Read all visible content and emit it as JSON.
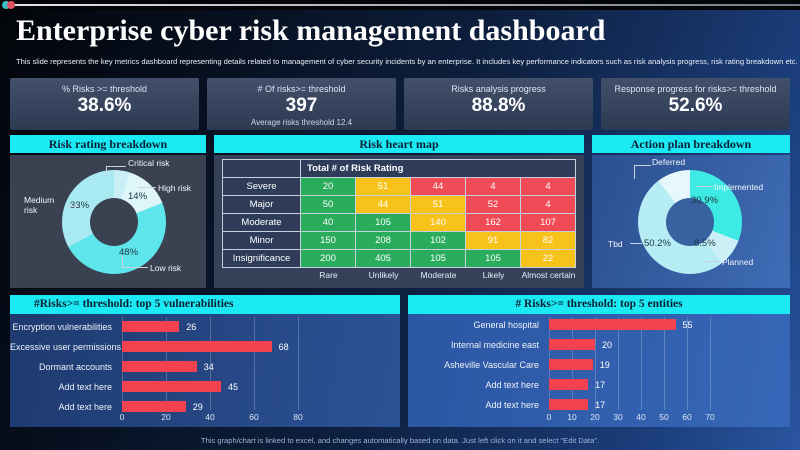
{
  "slide": {
    "title": "Enterprise cyber risk management dashboard",
    "subtitle": "This slide represents the key metrics dashboard representing details related to management  of cyber security incidents by an enterprise. It includes key performance indicators such as risk analysis progress, risk rating breakdown etc.",
    "footer": "This graph/chart is linked to excel, and changes automatically based on data. Just left click on it and select \"Edit Data\"."
  },
  "kpis": [
    {
      "label": "% Risks >= threshold",
      "value": "38.6%",
      "subtext": ""
    },
    {
      "label": "# Of risks>= threshold",
      "value": "397",
      "subtext": "Average risks threshold 12.4"
    },
    {
      "label": "Risks analysis progress",
      "value": "88.8%",
      "subtext": ""
    },
    {
      "label": "Response progress for risks>= threshold",
      "value": "52.6%",
      "subtext": ""
    }
  ],
  "chart_data": [
    {
      "id": "risk_rating_breakdown",
      "type": "pie",
      "donut": true,
      "title": "Risk rating breakdown",
      "legend_position": "callouts",
      "segments": [
        {
          "label": "Critical risk",
          "value": 5,
          "color": "#c9eff6",
          "pct_label": ""
        },
        {
          "label": "High risk",
          "value": 14,
          "color": "#def5fa",
          "pct_label": "14%"
        },
        {
          "label": "Low risk",
          "value": 48,
          "color": "#5fe5ec",
          "pct_label": "48%"
        },
        {
          "label": "Medium risk",
          "value": 33,
          "color": "#a9eaf2",
          "pct_label": "33%"
        }
      ]
    },
    {
      "id": "risk_heat_map",
      "type": "heatmap",
      "title": "Risk heart map",
      "corner_header": "Total # of Risk Rating",
      "rows": [
        {
          "label": "Severe",
          "cells": [
            {
              "v": 20,
              "c": "green"
            },
            {
              "v": 51,
              "c": "yellow"
            },
            {
              "v": 44,
              "c": "red"
            },
            {
              "v": 4,
              "c": "red"
            },
            {
              "v": 4,
              "c": "red"
            }
          ]
        },
        {
          "label": "Major",
          "cells": [
            {
              "v": 50,
              "c": "green"
            },
            {
              "v": 44,
              "c": "yellow"
            },
            {
              "v": 51,
              "c": "yellow"
            },
            {
              "v": 52,
              "c": "red"
            },
            {
              "v": 4,
              "c": "red"
            }
          ]
        },
        {
          "label": "Moderate",
          "cells": [
            {
              "v": 40,
              "c": "green"
            },
            {
              "v": 105,
              "c": "green"
            },
            {
              "v": 140,
              "c": "yellow"
            },
            {
              "v": 162,
              "c": "red"
            },
            {
              "v": 107,
              "c": "red"
            }
          ]
        },
        {
          "label": "Minor",
          "cells": [
            {
              "v": 150,
              "c": "green"
            },
            {
              "v": 208,
              "c": "green"
            },
            {
              "v": 102,
              "c": "green"
            },
            {
              "v": 91,
              "c": "yellow"
            },
            {
              "v": 82,
              "c": "yellow"
            }
          ]
        },
        {
          "label": "Insignificance",
          "cells": [
            {
              "v": 200,
              "c": "green"
            },
            {
              "v": 405,
              "c": "green"
            },
            {
              "v": 105,
              "c": "green"
            },
            {
              "v": 105,
              "c": "green"
            },
            {
              "v": 22,
              "c": "yellow"
            }
          ]
        }
      ],
      "x_labels": [
        "Rare",
        "Unlikely",
        "Moderate",
        "Likely",
        "Almost certain"
      ],
      "palette": {
        "green": "#29ad5d",
        "yellow": "#f7c31b",
        "red": "#f14b58"
      }
    },
    {
      "id": "action_plan_breakdown",
      "type": "pie",
      "donut": true,
      "title": "Action plan breakdown",
      "legend_position": "callouts",
      "segments": [
        {
          "label": "Implemented",
          "value": 30.9,
          "color": "#3eeae4",
          "pct_label": "30.9%"
        },
        {
          "label": "Planned",
          "value": 8.5,
          "color": "#cbf1f7",
          "pct_label": "8.5%"
        },
        {
          "label": "Tbd",
          "value": 50.2,
          "color": "#b6edf5",
          "pct_label": "50.2%"
        },
        {
          "label": "Deferred",
          "value": 10.4,
          "color": "#e6f8fb",
          "pct_label": ""
        }
      ]
    },
    {
      "id": "top5_vulnerabilities",
      "type": "bar",
      "orientation": "horizontal",
      "title": "#Risks>= threshold: top 5 vulnerabilities",
      "categories": [
        "Encryption vulnerabilities",
        "Excessive user permissions",
        "Dormant accounts",
        "Add text here",
        "Add text here"
      ],
      "values": [
        26,
        68,
        34,
        45,
        29
      ],
      "bar_color": "#f2414f",
      "axis_ticks": [
        0,
        20,
        40,
        60,
        80
      ],
      "xlim": [
        0,
        100
      ],
      "grid": true
    },
    {
      "id": "top5_entities",
      "type": "bar",
      "orientation": "horizontal",
      "title": "# Risks>= threshold: top 5 entities",
      "categories": [
        "General hospital",
        "Internal medicine east",
        "Asheville Vascular Care",
        "Add text here",
        "Add text here"
      ],
      "values": [
        55,
        20,
        19,
        17,
        17
      ],
      "bar_color": "#f2414f",
      "axis_ticks": [
        0,
        10,
        20,
        30,
        40,
        50,
        60,
        70
      ],
      "xlim": [
        0,
        75
      ],
      "grid": true
    }
  ]
}
